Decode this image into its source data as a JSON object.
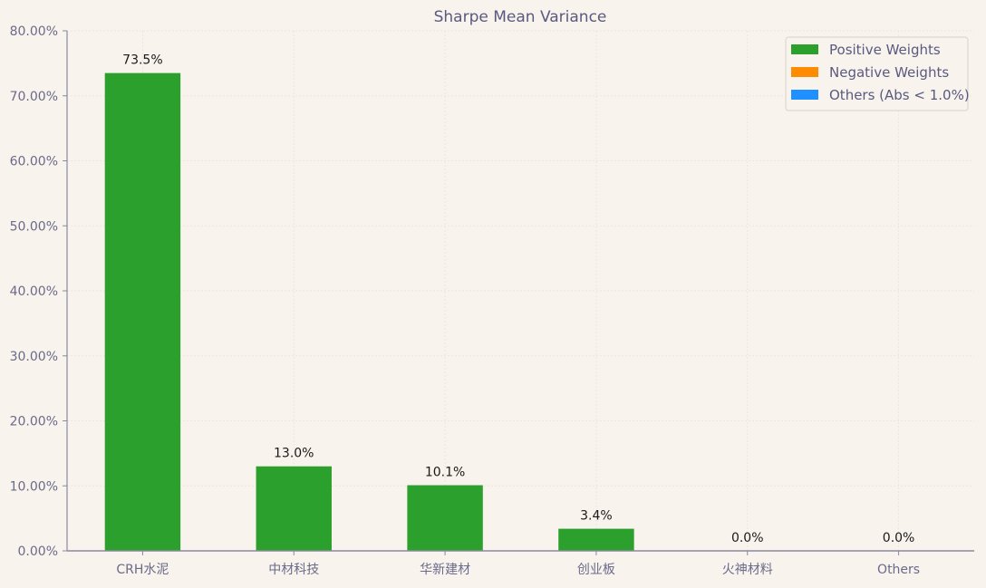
{
  "chart_data": {
    "type": "bar",
    "title": "Sharpe Mean Variance",
    "xlabel": "",
    "ylabel": "",
    "categories": [
      "CRH水泥",
      "中材科技",
      "华新建材",
      "创业板",
      "火神材料",
      "Others"
    ],
    "values": [
      73.5,
      13.0,
      10.1,
      3.4,
      0.0,
      0.0
    ],
    "value_labels": [
      "73.5%",
      "13.0%",
      "10.1%",
      "3.4%",
      "0.0%",
      "0.0%"
    ],
    "bar_colors": [
      "#2ca02c",
      "#2ca02c",
      "#2ca02c",
      "#2ca02c",
      "#2ca02c",
      "#1e90ff"
    ],
    "ylim": [
      0,
      80
    ],
    "yticks": [
      0,
      10,
      20,
      30,
      40,
      50,
      60,
      70,
      80
    ],
    "ytick_labels": [
      "0.00%",
      "10.00%",
      "20.00%",
      "30.00%",
      "40.00%",
      "50.00%",
      "60.00%",
      "70.00%",
      "80.00%"
    ],
    "grid": true,
    "legend": {
      "placement": "top-right",
      "entries": [
        {
          "label": "Positive Weights",
          "color": "#2ca02c"
        },
        {
          "label": "Negative Weights",
          "color": "#ff8c00"
        },
        {
          "label": "Others (Abs < 1.0%)",
          "color": "#1e90ff"
        }
      ]
    }
  },
  "colors": {
    "background": "#f8f3ec",
    "axis": "#8a8aa0",
    "grid": "#ece6dc"
  }
}
